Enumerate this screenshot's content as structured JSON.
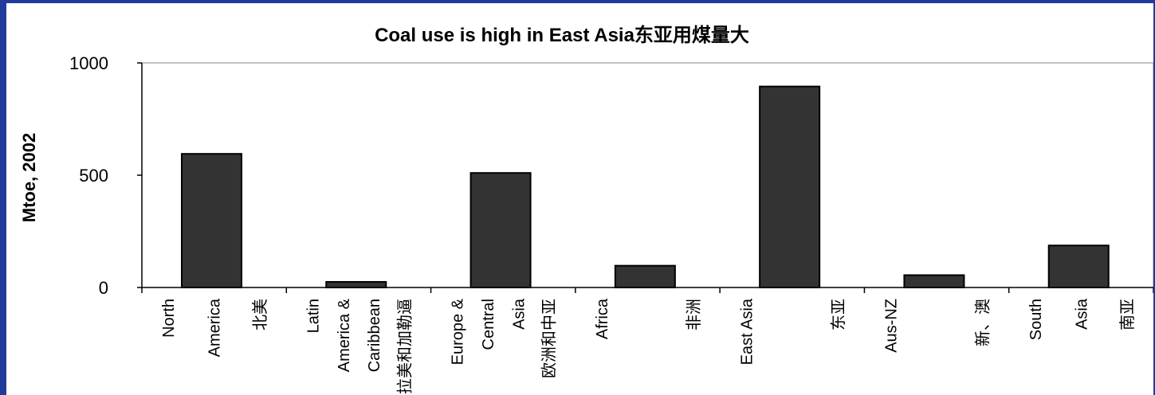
{
  "colors": {
    "background_border": "#1f3c9c",
    "panel": "#ffffff",
    "bar_fill": "#333333",
    "bar_stroke": "#000000"
  },
  "chart_data": {
    "type": "bar",
    "title": "Coal use is high in East Asia东亚用煤量大",
    "xlabel": "",
    "ylabel": "Mtoe, 2002",
    "ylim": [
      0,
      1000
    ],
    "yticks": [
      0,
      500,
      1000
    ],
    "grid": false,
    "categories": [
      "North America 北美",
      "Latin America & Caribbean 拉美和加勒逼",
      "Europe & Central Asia 欧洲和中亚",
      "Africa 非洲",
      "East Asia 东亚",
      "Aus-NZ 新、澳",
      "South Asia 南亚"
    ],
    "category_label_lines": [
      [
        "North",
        "America",
        "北美"
      ],
      [
        "Latin",
        "America &",
        "Caribbean",
        "拉美和加勒逼"
      ],
      [
        "Europe &",
        "Central",
        "Asia",
        "欧洲和中亚"
      ],
      [
        "Africa",
        "非洲"
      ],
      [
        "East Asia",
        "东亚"
      ],
      [
        "Aus-NZ",
        "新、澳"
      ],
      [
        "South",
        "Asia",
        "南亚"
      ]
    ],
    "values": [
      595,
      25,
      510,
      97,
      895,
      55,
      187
    ]
  }
}
